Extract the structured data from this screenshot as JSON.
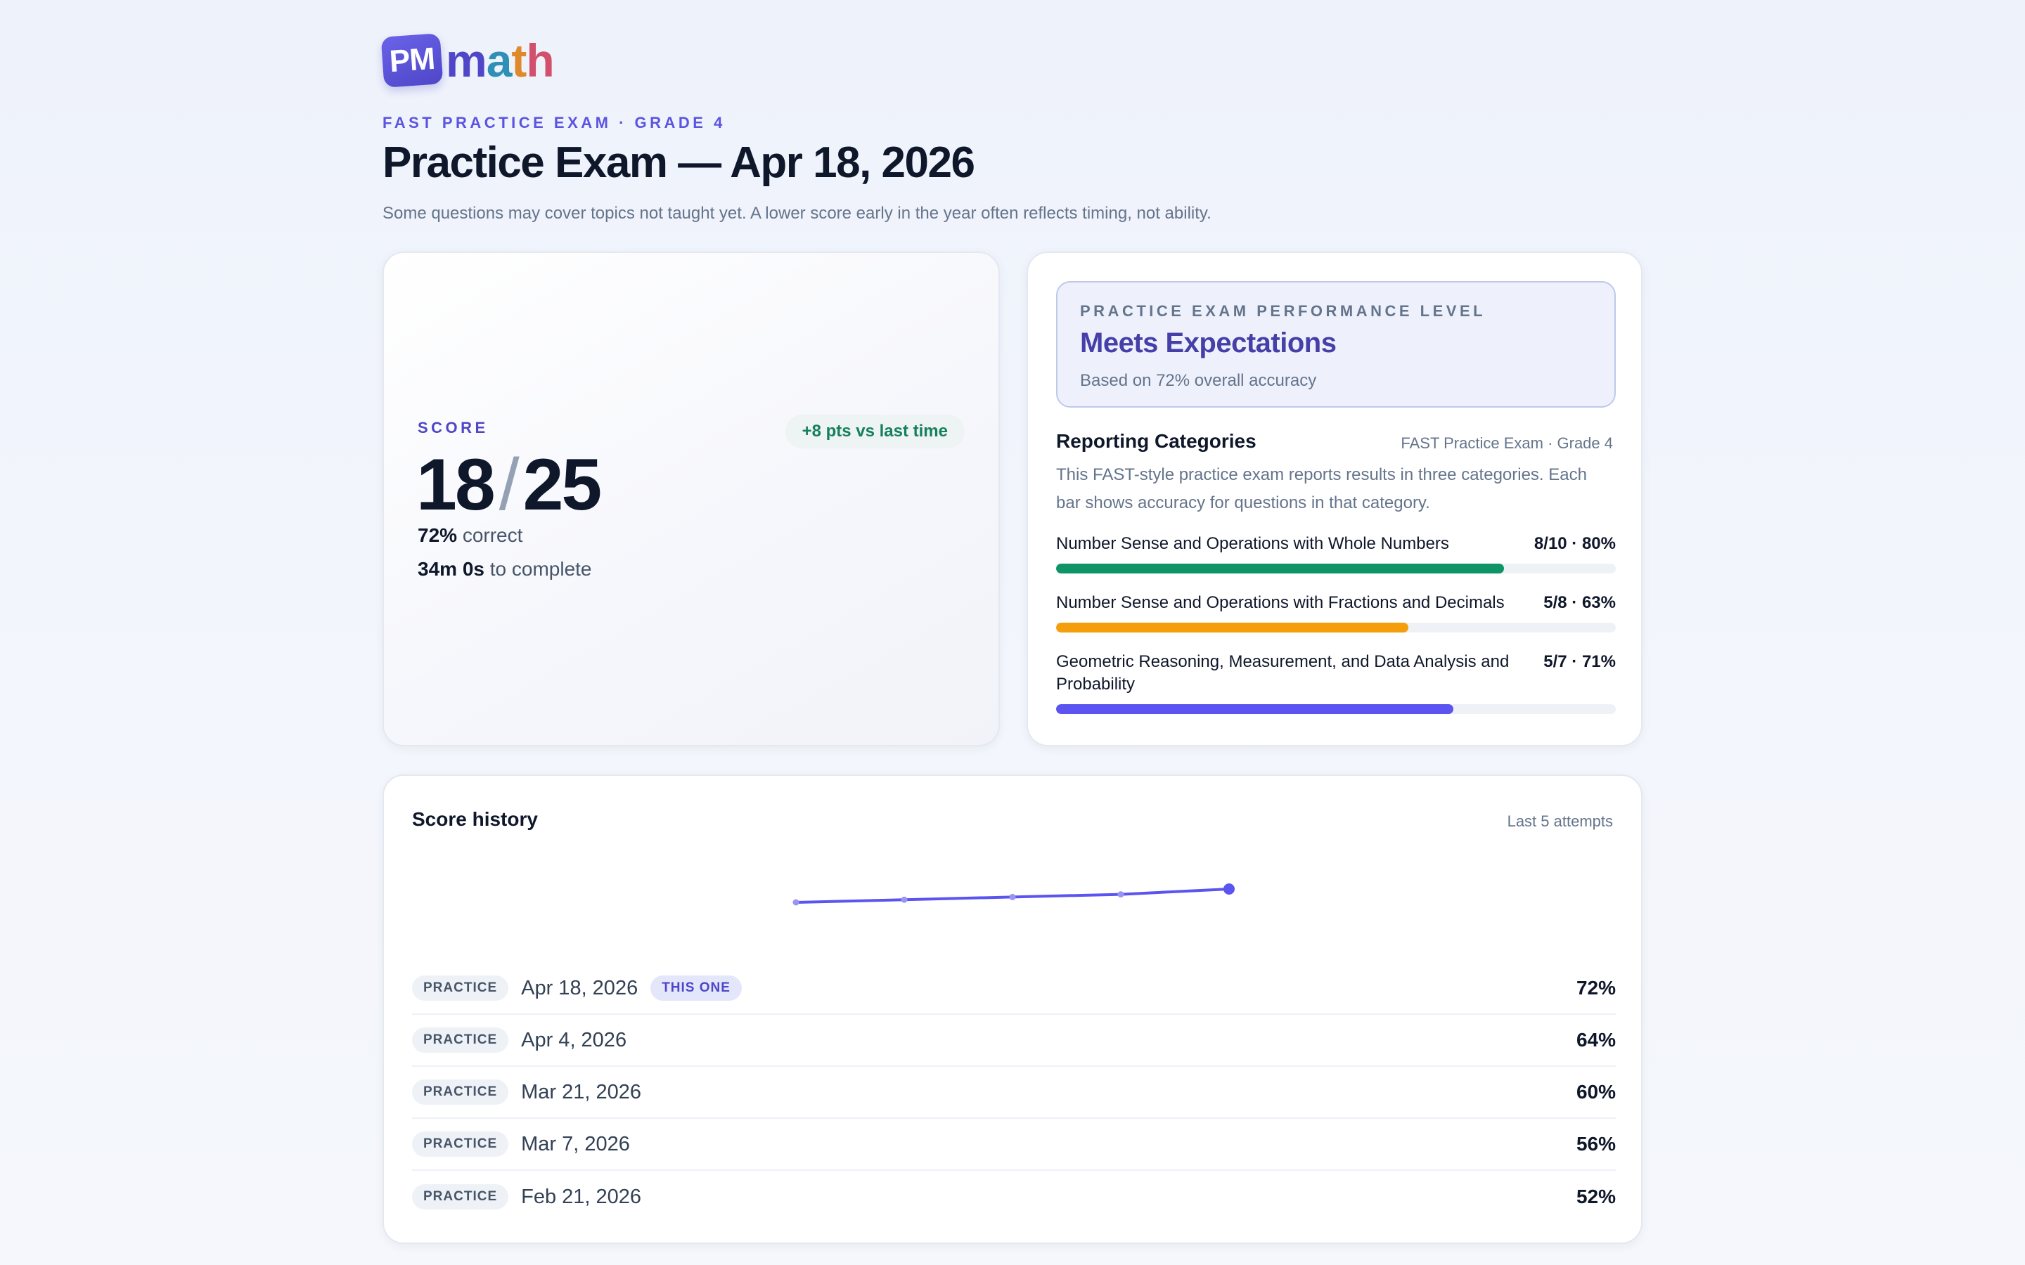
{
  "brand": {
    "badge": "PM",
    "word_m": "m",
    "word_a": "a",
    "word_t": "t",
    "word_h": "h"
  },
  "header": {
    "eyebrow": "FAST PRACTICE EXAM · GRADE 4",
    "title": "Practice Exam — Apr 18, 2026",
    "note": "Some questions may cover topics not taught yet. A lower score early in the year often reflects timing, not ability."
  },
  "score": {
    "label": "SCORE",
    "correct": "18",
    "slash": "/",
    "total": "25",
    "delta": "+8 pts vs last time",
    "pct": "72%",
    "pct_suffix": "correct",
    "time": "34m 0s",
    "time_suffix": "to complete"
  },
  "level": {
    "eyebrow": "PRACTICE EXAM PERFORMANCE LEVEL",
    "name": "Meets Expectations",
    "basis": "Based on 72% overall accuracy"
  },
  "categories": {
    "title": "Reporting Categories",
    "context": "FAST Practice Exam · Grade 4",
    "description": "This FAST-style practice exam reports results in three categories. Each bar shows accuracy for questions in that category.",
    "items": [
      {
        "name": "Number Sense and Operations with Whole Numbers",
        "stat": "8/10 · 80%",
        "value": 0.8,
        "color": "#0f9467"
      },
      {
        "name": "Number Sense and Operations with Fractions and Decimals",
        "stat": "5/8 · 63%",
        "value": 0.63,
        "color": "#f59e0b"
      },
      {
        "name": "Geometric Reasoning, Measurement, and Data Analysis and Probability",
        "stat": "5/7 · 71%",
        "value": 0.71,
        "color": "#5b54f0"
      }
    ]
  },
  "history": {
    "title": "Score history",
    "range": "Last 5 attempts",
    "line_color": "#5b54f0",
    "rows": [
      {
        "type": "PRACTICE",
        "date": "Apr 18, 2026",
        "badge": "THIS ONE",
        "pct": "72%"
      },
      {
        "type": "PRACTICE",
        "date": "Apr 4, 2026",
        "badge": "",
        "pct": "64%"
      },
      {
        "type": "PRACTICE",
        "date": "Mar 21, 2026",
        "badge": "",
        "pct": "60%"
      },
      {
        "type": "PRACTICE",
        "date": "Mar 7, 2026",
        "badge": "",
        "pct": "56%"
      },
      {
        "type": "PRACTICE",
        "date": "Feb 21, 2026",
        "badge": "",
        "pct": "52%"
      }
    ],
    "series": [
      52,
      56,
      60,
      64,
      72
    ]
  }
}
